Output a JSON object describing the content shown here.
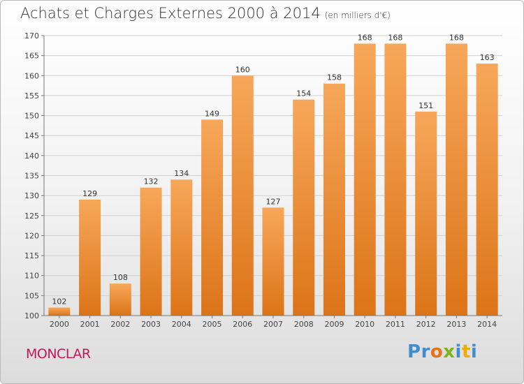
{
  "title": "Achats et Charges Externes 2000 à 2014",
  "subtitle": "(en milliers d'€)",
  "commune": "MONCLAR",
  "brand": {
    "letters": [
      "P",
      "r",
      "o",
      "x",
      "i",
      "t",
      "i"
    ],
    "colors": [
      "#3f8fd0",
      "#3f8fd0",
      "#e8711a",
      "#7cb518",
      "#3f8fd0",
      "#f2a900",
      "#3f8fd0"
    ]
  },
  "colors": {
    "bar_top": "#f7a75a",
    "bar_bottom": "#dc7418",
    "grid": "#d0d0d0",
    "axis": "#777777",
    "title": "#333333",
    "commune": "#c2185b"
  },
  "chart_data": {
    "type": "bar",
    "title": "Achats et Charges Externes 2000 à 2014",
    "subtitle": "(en milliers d'€)",
    "xlabel": "",
    "ylabel": "",
    "categories": [
      "2000",
      "2001",
      "2002",
      "2003",
      "2004",
      "2005",
      "2006",
      "2007",
      "2008",
      "2009",
      "2010",
      "2011",
      "2012",
      "2013",
      "2014"
    ],
    "values": [
      102,
      129,
      108,
      132,
      134,
      149,
      160,
      127,
      154,
      158,
      168,
      168,
      151,
      168,
      163
    ],
    "ylim": [
      100,
      170
    ],
    "yticks": [
      100,
      105,
      110,
      115,
      120,
      125,
      130,
      135,
      140,
      145,
      150,
      155,
      160,
      165,
      170
    ],
    "grid": true,
    "data_labels": true
  }
}
